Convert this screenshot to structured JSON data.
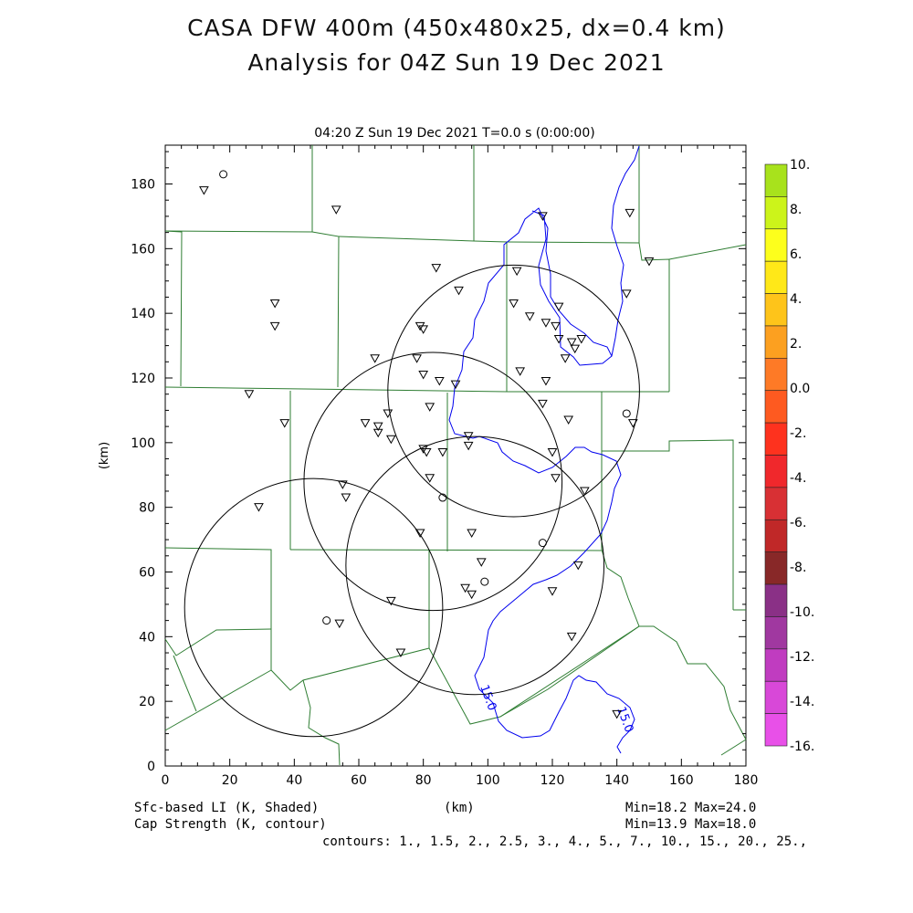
{
  "title_line1": "CASA DFW 400m (450x480x25, dx=0.4 km)",
  "title_line2": "Analysis for 04Z Sun 19 Dec 2021",
  "subtitle": "04:20 Z Sun 19 Dec 2021   T=0.0 s (0:00:00)",
  "xlabel": "(km)",
  "ylabel": "(km)",
  "x_ticks": [
    "0",
    "20",
    "40",
    "60",
    "80",
    "100",
    "120",
    "140",
    "160",
    "180"
  ],
  "y_ticks": [
    "0",
    "20",
    "40",
    "60",
    "80",
    "100",
    "120",
    "140",
    "160",
    "180"
  ],
  "colorbar": {
    "labels": [
      "10.",
      "8.",
      "6.",
      "4.",
      "2.",
      "0.0",
      "-2.",
      "-4.",
      "-6.",
      "-8.",
      "-10.",
      "-12.",
      "-14.",
      "-16."
    ],
    "colors": [
      "#a8e21c",
      "#ccf41a",
      "#fdff1c",
      "#ffe818",
      "#fec41a",
      "#fca020",
      "#fe7a26",
      "#fe5a20",
      "#fe321e",
      "#f0282c",
      "#d83034",
      "#c02828",
      "#882828",
      "#8a3086",
      "#a038a0",
      "#c03cc0",
      "#d848d8",
      "#e850e8"
    ]
  },
  "footer": {
    "left1": "Sfc-based LI (K, Shaded)",
    "left2": "Cap Strength (K, contour)",
    "center": "(km)",
    "right1": "Min=18.2 Max=24.0",
    "right2": "Min=13.9 Max=18.0",
    "contours": "contours: 1., 1.5, 2., 2.5, 3., 4., 5., 7., 10., 15., 20., 25.,"
  },
  "contour_labels": [
    "15.0",
    "15.0"
  ],
  "map_data": {
    "x_range_km": [
      0,
      180
    ],
    "y_range_km": [
      0,
      192
    ],
    "radar_circles": [
      {
        "cx": 108,
        "cy": 116,
        "r": 39
      },
      {
        "cx": 83,
        "cy": 88,
        "r": 40
      },
      {
        "cx": 96,
        "cy": 62,
        "r": 40
      },
      {
        "cx": 46,
        "cy": 49,
        "r": 40
      }
    ],
    "triangles": [
      [
        12,
        178
      ],
      [
        53,
        172
      ],
      [
        144,
        171
      ],
      [
        150,
        156
      ],
      [
        117,
        170
      ],
      [
        84,
        154
      ],
      [
        109,
        153
      ],
      [
        91,
        147
      ],
      [
        34,
        143
      ],
      [
        34,
        136
      ],
      [
        108,
        143
      ],
      [
        113,
        139
      ],
      [
        122,
        142
      ],
      [
        143,
        146
      ],
      [
        118,
        137
      ],
      [
        121,
        136
      ],
      [
        79,
        136
      ],
      [
        80,
        135
      ],
      [
        122,
        132
      ],
      [
        126,
        131
      ],
      [
        127,
        129
      ],
      [
        129,
        132
      ],
      [
        124,
        126
      ],
      [
        65,
        126
      ],
      [
        78,
        126
      ],
      [
        80,
        121
      ],
      [
        85,
        119
      ],
      [
        90,
        118
      ],
      [
        110,
        122
      ],
      [
        118,
        119
      ],
      [
        26,
        115
      ],
      [
        69,
        109
      ],
      [
        82,
        111
      ],
      [
        117,
        112
      ],
      [
        125,
        107
      ],
      [
        62,
        106
      ],
      [
        37,
        106
      ],
      [
        66,
        105
      ],
      [
        66,
        103
      ],
      [
        70,
        101
      ],
      [
        94,
        102
      ],
      [
        94,
        99
      ],
      [
        145,
        106
      ],
      [
        80,
        98
      ],
      [
        81,
        97
      ],
      [
        86,
        97
      ],
      [
        120,
        97
      ],
      [
        82,
        89
      ],
      [
        121,
        89
      ],
      [
        130,
        85
      ],
      [
        55,
        87
      ],
      [
        56,
        83
      ],
      [
        29,
        80
      ],
      [
        79,
        72
      ],
      [
        95,
        72
      ],
      [
        98,
        63
      ],
      [
        93,
        55
      ],
      [
        95,
        53
      ],
      [
        70,
        51
      ],
      [
        120,
        54
      ],
      [
        128,
        62
      ],
      [
        126,
        40
      ],
      [
        54,
        44
      ],
      [
        73,
        35
      ],
      [
        140,
        16
      ]
    ],
    "circles_obs": [
      [
        18,
        183
      ],
      [
        143,
        109
      ],
      [
        86,
        83
      ],
      [
        117,
        69
      ],
      [
        99,
        57
      ],
      [
        50,
        45
      ]
    ]
  }
}
